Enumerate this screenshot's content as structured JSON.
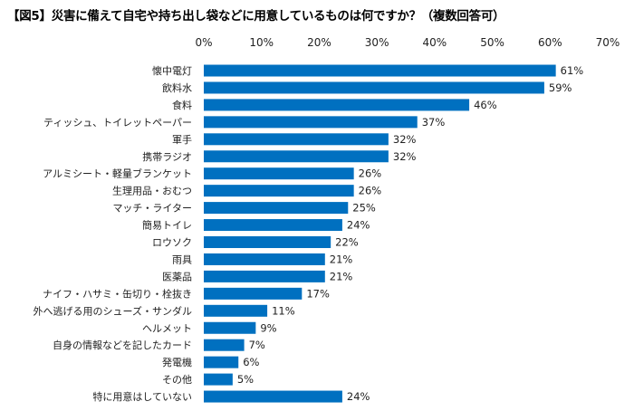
{
  "chart_data": {
    "type": "bar",
    "orientation": "horizontal",
    "title": "【図5】災害に備えて自宅や持ち出し袋などに用意しているものは何ですか？（複数回答可）",
    "xlabel": "",
    "ylabel": "",
    "xlim": [
      0,
      70
    ],
    "x_ticks": [
      "0%",
      "10%",
      "20%",
      "30%",
      "40%",
      "50%",
      "60%",
      "70%"
    ],
    "axis_position": "top",
    "grid": false,
    "bar_color": "#0070C0",
    "categories": [
      "懐中電灯",
      "飲料水",
      "食料",
      "ティッシュ、トイレットペーパー",
      "軍手",
      "携帯ラジオ",
      "アルミシート・軽量ブランケット",
      "生理用品・おむつ",
      "マッチ・ライター",
      "簡易トイレ",
      "ロウソク",
      "雨具",
      "医薬品",
      "ナイフ・ハサミ・缶切り・栓抜き",
      "外へ逃げる用のシューズ・サンダル",
      "ヘルメット",
      "自身の情報などを記したカード",
      "発電機",
      "その他",
      "特に用意はしていない"
    ],
    "values": [
      61,
      59,
      46,
      37,
      32,
      32,
      26,
      26,
      25,
      24,
      22,
      21,
      21,
      17,
      11,
      9,
      7,
      6,
      5,
      24
    ],
    "data_labels": [
      "61%",
      "59%",
      "46%",
      "37%",
      "32%",
      "32%",
      "26%",
      "26%",
      "25%",
      "24%",
      "22%",
      "21%",
      "21%",
      "17%",
      "11%",
      "9%",
      "7%",
      "6%",
      "5%",
      "24%"
    ]
  }
}
